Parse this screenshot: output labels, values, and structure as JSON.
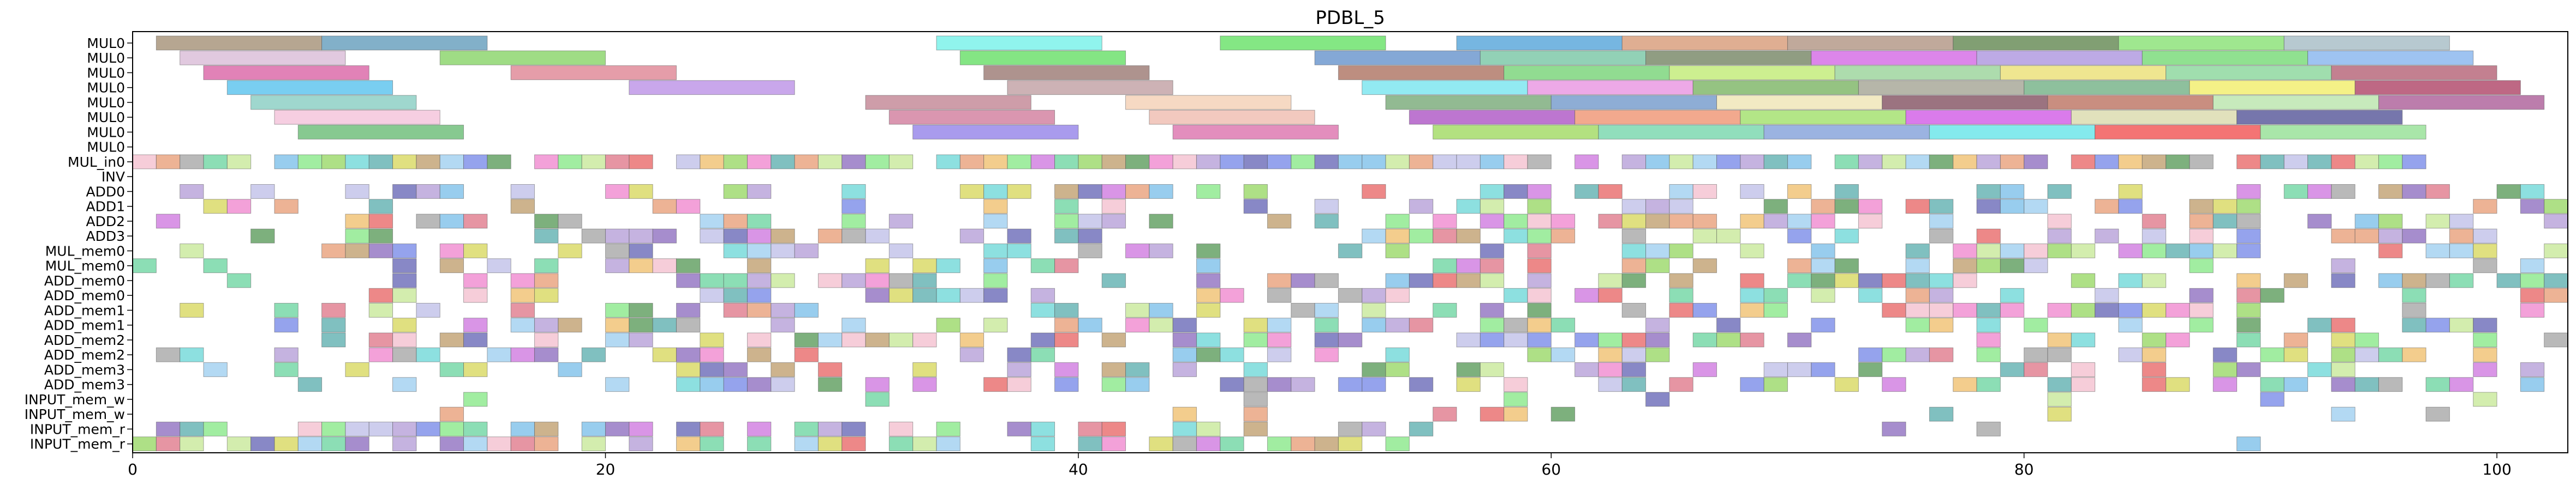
{
  "chart_data": {
    "type": "gantt",
    "title": "PDBL_5",
    "xlim": [
      0,
      103
    ],
    "x_ticks": [
      0,
      20,
      40,
      60,
      80,
      100
    ],
    "rows": [
      "MUL0",
      "MUL0",
      "MUL0",
      "MUL0",
      "MUL0",
      "MUL0",
      "MUL0",
      "MUL0",
      "MUL_in0",
      "INV",
      "ADD0",
      "ADD1",
      "ADD2",
      "ADD3",
      "MUL_mem0",
      "MUL_mem0",
      "ADD_mem0",
      "ADD_mem0",
      "ADD_mem1",
      "ADD_mem1",
      "ADD_mem2",
      "ADD_mem2",
      "ADD_mem3",
      "ADD_mem3",
      "INPUT_mem_w",
      "INPUT_mem_w",
      "INPUT_mem_r",
      "INPUT_mem_r"
    ],
    "bars": [
      {
        "row": 0,
        "start": 1,
        "end": 8,
        "color": "#a9967e"
      },
      {
        "row": 0,
        "start": 8,
        "end": 15,
        "color": "#6ca2bf"
      },
      {
        "row": 0,
        "start": 34,
        "end": 41,
        "color": "#7df2ea"
      },
      {
        "row": 0,
        "start": 46,
        "end": 53,
        "color": "#6ee36e"
      },
      {
        "row": 0,
        "start": 56,
        "end": 63,
        "color": "#5ea9dc"
      },
      {
        "row": 0,
        "start": 63,
        "end": 70,
        "color": "#d9a07f"
      },
      {
        "row": 0,
        "start": 70,
        "end": 77,
        "color": "#b59a8a"
      },
      {
        "row": 0,
        "start": 77,
        "end": 84,
        "color": "#6b8e5b"
      },
      {
        "row": 0,
        "start": 84,
        "end": 91,
        "color": "#8ee37b"
      },
      {
        "row": 0,
        "start": 91,
        "end": 98,
        "color": "#aabfc8"
      },
      {
        "row": 1,
        "start": 2,
        "end": 9,
        "color": "#dcbfd9"
      },
      {
        "row": 1,
        "start": 13,
        "end": 20,
        "color": "#8ed670"
      },
      {
        "row": 1,
        "start": 35,
        "end": 42,
        "color": "#6fe06f"
      },
      {
        "row": 1,
        "start": 50,
        "end": 57,
        "color": "#6f99cf"
      },
      {
        "row": 1,
        "start": 57,
        "end": 64,
        "color": "#7fc9a9"
      },
      {
        "row": 1,
        "start": 64,
        "end": 71,
        "color": "#7c8c6c"
      },
      {
        "row": 1,
        "start": 71,
        "end": 78,
        "color": "#d671e6"
      },
      {
        "row": 1,
        "start": 78,
        "end": 85,
        "color": "#b29be0"
      },
      {
        "row": 1,
        "start": 85,
        "end": 92,
        "color": "#7cdc7c"
      },
      {
        "row": 1,
        "start": 92,
        "end": 99,
        "color": "#8db8ee"
      },
      {
        "row": 2,
        "start": 3,
        "end": 10,
        "color": "#dc6caa"
      },
      {
        "row": 2,
        "start": 16,
        "end": 23,
        "color": "#e08c9a"
      },
      {
        "row": 2,
        "start": 36,
        "end": 43,
        "color": "#a0807a"
      },
      {
        "row": 2,
        "start": 51,
        "end": 58,
        "color": "#b17a6a"
      },
      {
        "row": 2,
        "start": 58,
        "end": 65,
        "color": "#7ed67e"
      },
      {
        "row": 2,
        "start": 65,
        "end": 72,
        "color": "#c4ec7c"
      },
      {
        "row": 2,
        "start": 72,
        "end": 79,
        "color": "#9fd69f"
      },
      {
        "row": 2,
        "start": 79,
        "end": 86,
        "color": "#ece27c"
      },
      {
        "row": 2,
        "start": 86,
        "end": 93,
        "color": "#8fd8a0"
      },
      {
        "row": 2,
        "start": 93,
        "end": 100,
        "color": "#b86a7c"
      },
      {
        "row": 3,
        "start": 4,
        "end": 11,
        "color": "#62c6ee"
      },
      {
        "row": 3,
        "start": 21,
        "end": 28,
        "color": "#c098e8"
      },
      {
        "row": 3,
        "start": 37,
        "end": 44,
        "color": "#c4a4a8"
      },
      {
        "row": 3,
        "start": 52,
        "end": 59,
        "color": "#7fe6f0"
      },
      {
        "row": 3,
        "start": 59,
        "end": 66,
        "color": "#ea9ae3"
      },
      {
        "row": 3,
        "start": 66,
        "end": 73,
        "color": "#82b86c"
      },
      {
        "row": 3,
        "start": 73,
        "end": 80,
        "color": "#a9a99a"
      },
      {
        "row": 3,
        "start": 80,
        "end": 87,
        "color": "#7ab58c"
      },
      {
        "row": 3,
        "start": 87,
        "end": 94,
        "color": "#f2ee72"
      },
      {
        "row": 3,
        "start": 94,
        "end": 101,
        "color": "#b34e6e"
      },
      {
        "row": 4,
        "start": 5,
        "end": 12,
        "color": "#8ed0c6"
      },
      {
        "row": 4,
        "start": 31,
        "end": 38,
        "color": "#c58c9a"
      },
      {
        "row": 4,
        "start": 42,
        "end": 49,
        "color": "#f4d2b8"
      },
      {
        "row": 4,
        "start": 53,
        "end": 60,
        "color": "#7fae7f"
      },
      {
        "row": 4,
        "start": 60,
        "end": 67,
        "color": "#7a9fce"
      },
      {
        "row": 4,
        "start": 67,
        "end": 74,
        "color": "#f0e6b8"
      },
      {
        "row": 4,
        "start": 74,
        "end": 81,
        "color": "#8a5a6a"
      },
      {
        "row": 4,
        "start": 81,
        "end": 88,
        "color": "#c07a6a"
      },
      {
        "row": 4,
        "start": 88,
        "end": 95,
        "color": "#bde6b0"
      },
      {
        "row": 4,
        "start": 95,
        "end": 102,
        "color": "#b0669e"
      },
      {
        "row": 5,
        "start": 6,
        "end": 13,
        "color": "#f4c6dc"
      },
      {
        "row": 5,
        "start": 32,
        "end": 39,
        "color": "#d484a2"
      },
      {
        "row": 5,
        "start": 43,
        "end": 50,
        "color": "#f0c0b4"
      },
      {
        "row": 5,
        "start": 54,
        "end": 61,
        "color": "#b25ec8"
      },
      {
        "row": 5,
        "start": 61,
        "end": 68,
        "color": "#f09a7a"
      },
      {
        "row": 5,
        "start": 68,
        "end": 75,
        "color": "#a6e272"
      },
      {
        "row": 5,
        "start": 75,
        "end": 82,
        "color": "#d464e8"
      },
      {
        "row": 5,
        "start": 82,
        "end": 89,
        "color": "#dcdcb0"
      },
      {
        "row": 5,
        "start": 89,
        "end": 96,
        "color": "#5e5e9e"
      },
      {
        "row": 6,
        "start": 7,
        "end": 14,
        "color": "#72c07c"
      },
      {
        "row": 6,
        "start": 33,
        "end": 40,
        "color": "#9a8aea"
      },
      {
        "row": 6,
        "start": 44,
        "end": 51,
        "color": "#de7ab2"
      },
      {
        "row": 6,
        "start": 55,
        "end": 62,
        "color": "#a6dc6a"
      },
      {
        "row": 6,
        "start": 62,
        "end": 69,
        "color": "#7ed8b0"
      },
      {
        "row": 6,
        "start": 69,
        "end": 76,
        "color": "#8aa6dc"
      },
      {
        "row": 6,
        "start": 76,
        "end": 83,
        "color": "#6ee6ea"
      },
      {
        "row": 6,
        "start": 83,
        "end": 90,
        "color": "#f25c5c"
      },
      {
        "row": 6,
        "start": 90,
        "end": 97,
        "color": "#9ae29a"
      }
    ]
  }
}
